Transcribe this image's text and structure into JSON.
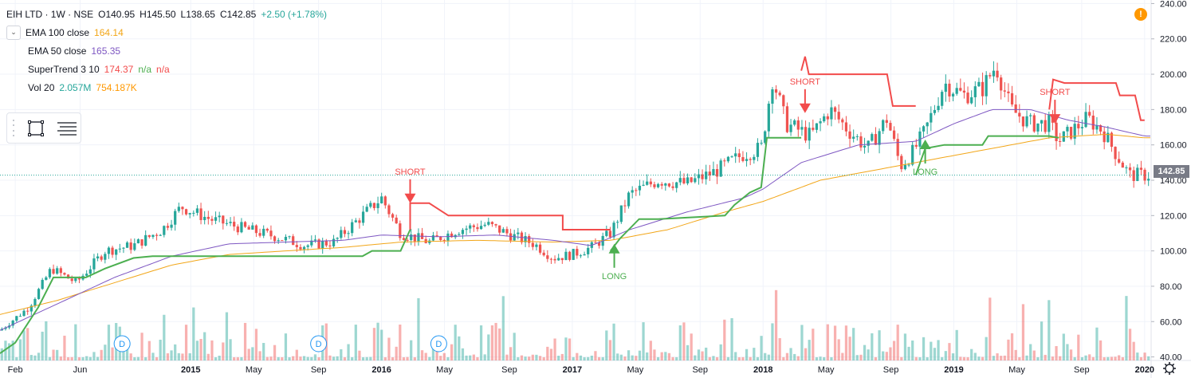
{
  "header": {
    "symbol": "EIH LTD · 1W · NSE",
    "open": "O140.95",
    "high": "H145.50",
    "low": "L138.65",
    "close": "C142.85",
    "change": "+2.50 (+1.78%)"
  },
  "indicators": [
    {
      "name": "EMA 100 close",
      "values": [
        "164.14"
      ],
      "colors": [
        "#f2a618"
      ]
    },
    {
      "name": "EMA 50 close",
      "values": [
        "165.35"
      ],
      "colors": [
        "#7e57c2"
      ]
    },
    {
      "name": "SuperTrend 3 10",
      "values": [
        "174.37",
        "n/a",
        "n/a"
      ],
      "colors": [
        "#f24b4b",
        "#4caf50",
        "#f24b4b"
      ]
    },
    {
      "name": "Vol 20",
      "values": [
        "2.057M",
        "754.187K"
      ],
      "colors": [
        "#26a69a",
        "#ff9800"
      ]
    }
  ],
  "warning_icon": "!",
  "toolbar": {
    "icons": [
      "rectangle-icon",
      "text-lines-icon"
    ]
  },
  "chart_data": {
    "type": "candlestick",
    "xlabels": [
      "Feb",
      "Jun",
      "2015",
      "May",
      "Sep",
      "2016",
      "May",
      "Sep",
      "2017",
      "May",
      "Sep",
      "2018",
      "May",
      "Sep",
      "2019",
      "May",
      "Sep",
      "2020"
    ],
    "xlabel_dates": [
      2014.08,
      2014.42,
      2015.0,
      2015.33,
      2015.67,
      2016.0,
      2016.33,
      2016.67,
      2017.0,
      2017.33,
      2017.67,
      2018.0,
      2018.33,
      2018.67,
      2019.0,
      2019.33,
      2019.67,
      2020.0
    ],
    "yticks": [
      "240.00",
      "220.00",
      "200.00",
      "180.00",
      "160.00",
      "140.00",
      "120.00",
      "100.00",
      "80.00",
      "60.00",
      "40.00"
    ],
    "ylim": [
      38,
      242
    ],
    "xlim": [
      2014.0,
      2020.03
    ],
    "last_price": "142.85",
    "up_color": "#26a69a",
    "down_color": "#ef5350",
    "price_anchors": [
      [
        2014.0,
        55
      ],
      [
        2014.15,
        68
      ],
      [
        2014.27,
        90
      ],
      [
        2014.4,
        82
      ],
      [
        2014.55,
        100
      ],
      [
        2014.7,
        103
      ],
      [
        2014.85,
        112
      ],
      [
        2014.95,
        125
      ],
      [
        2015.1,
        118
      ],
      [
        2015.3,
        112
      ],
      [
        2015.45,
        108
      ],
      [
        2015.6,
        103
      ],
      [
        2015.75,
        105
      ],
      [
        2015.9,
        120
      ],
      [
        2016.0,
        130
      ],
      [
        2016.1,
        110
      ],
      [
        2016.25,
        105
      ],
      [
        2016.4,
        112
      ],
      [
        2016.55,
        115
      ],
      [
        2016.7,
        108
      ],
      [
        2016.8,
        104
      ],
      [
        2016.9,
        96
      ],
      [
        2017.0,
        98
      ],
      [
        2017.1,
        102
      ],
      [
        2017.2,
        110
      ],
      [
        2017.3,
        132
      ],
      [
        2017.45,
        140
      ],
      [
        2017.6,
        138
      ],
      [
        2017.75,
        145
      ],
      [
        2017.9,
        155
      ],
      [
        2017.99,
        158
      ],
      [
        2018.05,
        198
      ],
      [
        2018.12,
        172
      ],
      [
        2018.25,
        165
      ],
      [
        2018.35,
        180
      ],
      [
        2018.45,
        168
      ],
      [
        2018.55,
        158
      ],
      [
        2018.65,
        175
      ],
      [
        2018.72,
        148
      ],
      [
        2018.78,
        155
      ],
      [
        2018.85,
        168
      ],
      [
        2018.95,
        195
      ],
      [
        2019.05,
        188
      ],
      [
        2019.15,
        192
      ],
      [
        2019.22,
        205
      ],
      [
        2019.3,
        180
      ],
      [
        2019.4,
        172
      ],
      [
        2019.5,
        172
      ],
      [
        2019.55,
        162
      ],
      [
        2019.62,
        168
      ],
      [
        2019.7,
        175
      ],
      [
        2019.78,
        168
      ],
      [
        2019.85,
        155
      ],
      [
        2019.92,
        143
      ],
      [
        2020.0,
        142.85
      ]
    ],
    "ema100_anchors": [
      [
        2014.0,
        64
      ],
      [
        2014.3,
        72
      ],
      [
        2014.6,
        82
      ],
      [
        2014.9,
        92
      ],
      [
        2015.2,
        98
      ],
      [
        2015.5,
        100
      ],
      [
        2015.8,
        102
      ],
      [
        2016.1,
        105
      ],
      [
        2016.5,
        106
      ],
      [
        2016.9,
        105
      ],
      [
        2017.2,
        106
      ],
      [
        2017.5,
        112
      ],
      [
        2017.8,
        122
      ],
      [
        2018.0,
        128
      ],
      [
        2018.3,
        140
      ],
      [
        2018.6,
        146
      ],
      [
        2018.9,
        152
      ],
      [
        2019.2,
        158
      ],
      [
        2019.5,
        164
      ],
      [
        2019.8,
        166
      ],
      [
        2020.0,
        164
      ]
    ],
    "ema50_anchors": [
      [
        2014.0,
        55
      ],
      [
        2014.3,
        70
      ],
      [
        2014.6,
        85
      ],
      [
        2014.9,
        97
      ],
      [
        2015.2,
        104
      ],
      [
        2015.5,
        105
      ],
      [
        2015.8,
        106
      ],
      [
        2016.0,
        109
      ],
      [
        2016.3,
        108
      ],
      [
        2016.6,
        109
      ],
      [
        2016.9,
        106
      ],
      [
        2017.1,
        103
      ],
      [
        2017.3,
        112
      ],
      [
        2017.6,
        122
      ],
      [
        2017.9,
        130
      ],
      [
        2018.0,
        135
      ],
      [
        2018.2,
        150
      ],
      [
        2018.5,
        160
      ],
      [
        2018.8,
        162
      ],
      [
        2019.0,
        172
      ],
      [
        2019.2,
        180
      ],
      [
        2019.4,
        180
      ],
      [
        2019.6,
        174
      ],
      [
        2019.8,
        170
      ],
      [
        2020.0,
        165
      ]
    ],
    "supertrend_segments": [
      {
        "color": "#f24b4b",
        "points": [
          [
            2016.15,
            112
          ],
          [
            2016.15,
            127
          ],
          [
            2016.25,
            127
          ],
          [
            2016.35,
            120
          ],
          [
            2016.95,
            120
          ],
          [
            2016.95,
            112
          ],
          [
            2017.2,
            112
          ]
        ]
      },
      {
        "color": "#f24b4b",
        "points": [
          [
            2018.2,
            202
          ],
          [
            2018.22,
            210
          ],
          [
            2018.24,
            200
          ],
          [
            2018.65,
            200
          ],
          [
            2018.68,
            182
          ],
          [
            2018.8,
            182
          ]
        ]
      },
      {
        "color": "#f24b4b",
        "points": [
          [
            2019.5,
            180
          ],
          [
            2019.52,
            197
          ],
          [
            2019.58,
            195
          ],
          [
            2019.85,
            195
          ],
          [
            2019.87,
            188
          ],
          [
            2019.95,
            188
          ],
          [
            2019.98,
            174
          ],
          [
            2020.0,
            174
          ]
        ]
      },
      {
        "color": "#4caf50",
        "points": [
          [
            2014.0,
            42
          ],
          [
            2014.08,
            48
          ],
          [
            2014.2,
            68
          ],
          [
            2014.28,
            85
          ],
          [
            2014.45,
            85
          ],
          [
            2014.55,
            90
          ],
          [
            2014.7,
            96
          ],
          [
            2014.8,
            97
          ],
          [
            2015.9,
            97
          ],
          [
            2015.95,
            100
          ],
          [
            2016.1,
            100
          ],
          [
            2016.15,
            112
          ]
        ]
      },
      {
        "color": "#4caf50",
        "points": [
          [
            2017.2,
            100
          ],
          [
            2017.25,
            107
          ],
          [
            2017.35,
            118
          ],
          [
            2017.45,
            118
          ],
          [
            2017.8,
            120
          ],
          [
            2017.85,
            126
          ],
          [
            2017.93,
            133
          ],
          [
            2017.99,
            136
          ],
          [
            2018.02,
            164
          ],
          [
            2018.2,
            164
          ]
        ]
      },
      {
        "color": "#4caf50",
        "points": [
          [
            2018.8,
            143
          ],
          [
            2018.85,
            158
          ],
          [
            2018.95,
            160
          ],
          [
            2019.0,
            160
          ],
          [
            2019.15,
            160
          ],
          [
            2019.18,
            165
          ],
          [
            2019.5,
            165
          ],
          [
            2019.55,
            164
          ]
        ]
      }
    ],
    "markers": [
      {
        "label": "SHORT",
        "x": 2016.15,
        "y": 127,
        "dir": "down",
        "color": "#f24b4b"
      },
      {
        "label": "LONG",
        "x": 2017.22,
        "y": 104,
        "dir": "up",
        "color": "#4caf50"
      },
      {
        "label": "SHORT",
        "x": 2018.22,
        "y": 178,
        "dir": "down",
        "color": "#f24b4b"
      },
      {
        "label": "LONG",
        "x": 2018.85,
        "y": 163,
        "dir": "up",
        "color": "#4caf50"
      },
      {
        "label": "SHORT",
        "x": 2019.53,
        "y": 172,
        "dir": "down",
        "color": "#f24b4b"
      }
    ],
    "dividend_markers": [
      {
        "label": "D",
        "x": 2014.64
      },
      {
        "label": "D",
        "x": 2015.67
      },
      {
        "label": "D",
        "x": 2016.3
      }
    ]
  }
}
